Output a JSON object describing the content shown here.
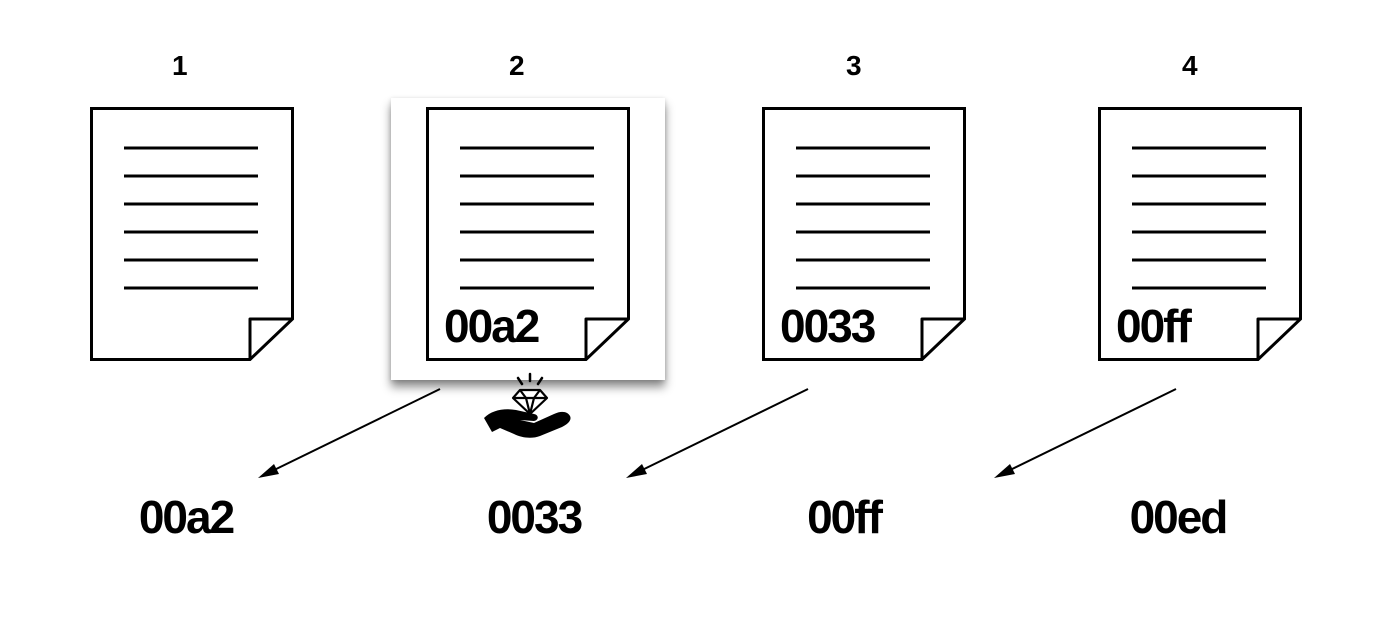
{
  "pages": [
    {
      "number": "1",
      "code": ""
    },
    {
      "number": "2",
      "code": "00a2"
    },
    {
      "number": "3",
      "code": "0033"
    },
    {
      "number": "4",
      "code": "00ff"
    }
  ],
  "values": [
    "00a2",
    "0033",
    "00ff",
    "00ed"
  ],
  "highlighted_page": "2",
  "icons": [
    "document-icon",
    "hand-diamond-icon",
    "arrow"
  ]
}
